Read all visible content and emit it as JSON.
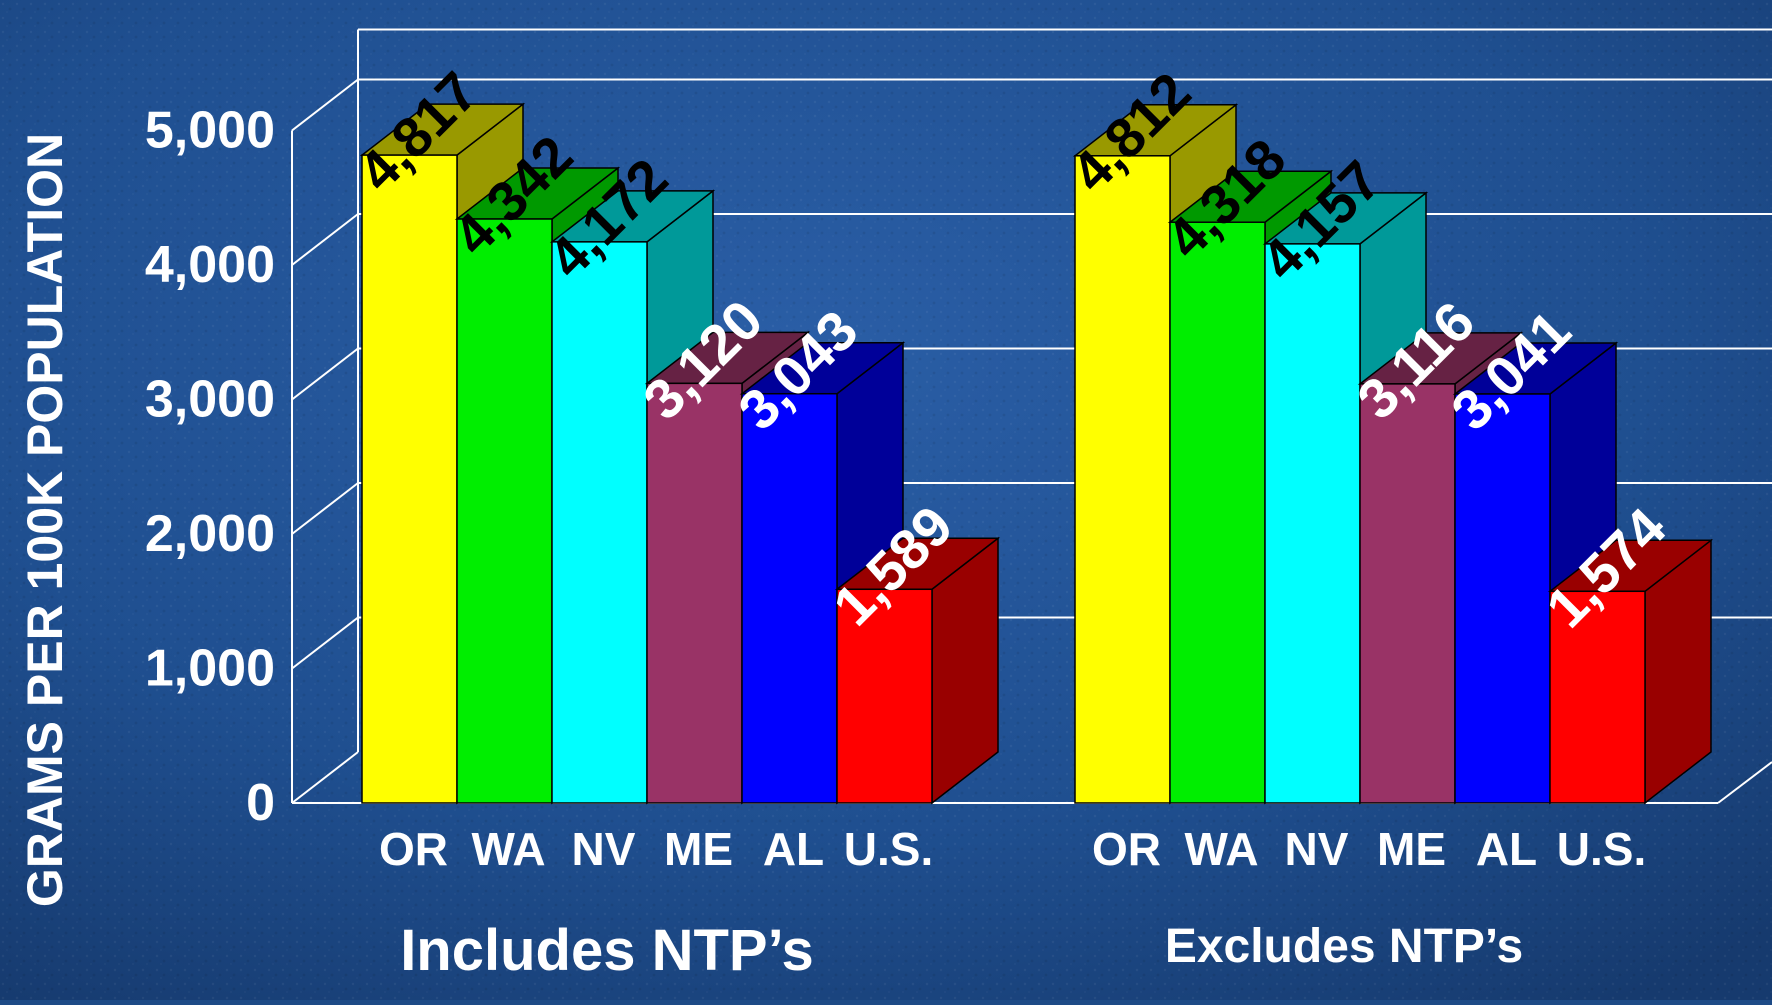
{
  "chart_data": {
    "type": "bar",
    "ylabel": "GRAMS PER 100K POPULATION",
    "ylim": [
      0,
      5000
    ],
    "yticks": [
      "0",
      "1,000",
      "2,000",
      "3,000",
      "4,000",
      "5,000"
    ],
    "ytick_values": [
      0,
      1000,
      2000,
      3000,
      4000,
      5000
    ],
    "grid": true,
    "groups": [
      {
        "title": "Includes NTP’s",
        "categories": [
          "OR",
          "WA",
          "NV",
          "ME",
          "AL",
          "U.S."
        ],
        "values": [
          4817,
          4342,
          4172,
          3120,
          3043,
          1589
        ],
        "labels": [
          "4,817",
          "4,342",
          "4,172",
          "3,120",
          "3,043",
          "1,589"
        ]
      },
      {
        "title": "Excludes NTP’s",
        "categories": [
          "OR",
          "WA",
          "NV",
          "ME",
          "AL",
          "U.S."
        ],
        "values": [
          4812,
          4318,
          4157,
          3116,
          3041,
          1574
        ],
        "labels": [
          "4,812",
          "4,318",
          "4,157",
          "3,116",
          "3,041",
          "1,574"
        ]
      }
    ],
    "bar_colors": [
      "#ffff00",
      "#00ee00",
      "#00ffff",
      "#993366",
      "#0000ff",
      "#ff0000"
    ],
    "label_colors": [
      "#000000",
      "#000000",
      "#000000",
      "#ffffff",
      "#ffffff",
      "#ffffff"
    ]
  },
  "colors": {
    "background": "#1d4a86",
    "text": "#ffffff",
    "gridline": "#ffffff"
  }
}
